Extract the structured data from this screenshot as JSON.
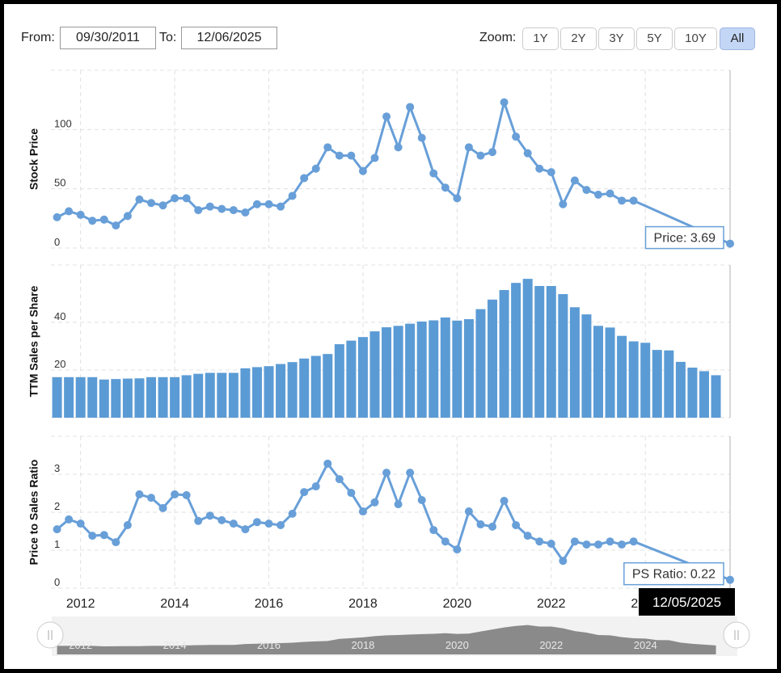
{
  "controls": {
    "from_label": "From:",
    "from_value": "09/30/2011",
    "to_label": "To:",
    "to_value": "12/06/2025",
    "zoom_label": "Zoom:",
    "zoom_buttons": [
      "1Y",
      "2Y",
      "3Y",
      "5Y",
      "10Y",
      "All"
    ],
    "zoom_selected": "All"
  },
  "chart_data": [
    {
      "type": "line",
      "y_label": "Stock Price",
      "color": "#689fd8",
      "x": [
        2011.5,
        2011.75,
        2012,
        2012.25,
        2012.5,
        2012.75,
        2013,
        2013.25,
        2013.5,
        2013.75,
        2014,
        2014.25,
        2014.5,
        2014.75,
        2015,
        2015.25,
        2015.5,
        2015.75,
        2016,
        2016.25,
        2016.5,
        2016.75,
        2017,
        2017.25,
        2017.5,
        2017.75,
        2018,
        2018.25,
        2018.5,
        2018.75,
        2019,
        2019.25,
        2019.5,
        2019.75,
        2020,
        2020.25,
        2020.5,
        2020.75,
        2021,
        2021.25,
        2021.5,
        2021.75,
        2022,
        2022.25,
        2022.5,
        2022.75,
        2023,
        2023.25,
        2023.5,
        2023.75,
        2025.8
      ],
      "values": [
        26,
        31,
        28,
        23,
        24,
        19,
        27,
        41,
        38,
        36,
        42,
        42,
        32,
        35,
        33,
        32,
        30,
        37,
        37,
        35,
        44,
        59,
        67,
        85,
        78,
        78,
        65,
        76,
        111,
        85,
        119,
        93,
        63,
        51,
        42,
        85,
        78,
        81,
        123,
        94,
        80,
        67,
        64,
        37,
        57,
        49,
        45,
        46,
        40,
        40,
        3.69
      ],
      "xlim": [
        2011.37,
        2025.8
      ],
      "xticks": [
        2012,
        2014,
        2016,
        2018,
        2020,
        2022,
        2024
      ],
      "ylim": [
        0,
        150
      ],
      "yticks": [
        0,
        50,
        100
      ],
      "grid": true,
      "tooltip": "Price: 3.69"
    },
    {
      "type": "bar",
      "y_label": "TTM Sales per Share",
      "color": "#5b9bd5",
      "x": [
        2011.5,
        2011.75,
        2012,
        2012.25,
        2012.5,
        2012.75,
        2013,
        2013.25,
        2013.5,
        2013.75,
        2014,
        2014.25,
        2014.5,
        2014.75,
        2015,
        2015.25,
        2015.5,
        2015.75,
        2016,
        2016.25,
        2016.5,
        2016.75,
        2017,
        2017.25,
        2017.5,
        2017.75,
        2018,
        2018.25,
        2018.5,
        2018.75,
        2019,
        2019.25,
        2019.5,
        2019.75,
        2020,
        2020.25,
        2020.5,
        2020.75,
        2021,
        2021.25,
        2021.5,
        2021.75,
        2022,
        2022.25,
        2022.5,
        2022.75,
        2023,
        2023.25,
        2023.5,
        2023.75,
        2024,
        2024.25,
        2024.5,
        2024.75,
        2025,
        2025.25,
        2025.5
      ],
      "values": [
        17.0,
        17.0,
        17.0,
        17.0,
        16.0,
        16.2,
        16.4,
        16.5,
        17.0,
        17.0,
        17.0,
        17.8,
        18.4,
        18.8,
        18.8,
        18.8,
        20.7,
        21.2,
        21.6,
        22.5,
        23.3,
        24.8,
        25.9,
        26.7,
        30.8,
        32.3,
        33.8,
        36.2,
        37.9,
        38.5,
        39.4,
        40.3,
        40.8,
        42.0,
        40.7,
        41.3,
        45.5,
        49.5,
        53.5,
        56.5,
        58.2,
        55.2,
        55.2,
        51.8,
        46.3,
        43.3,
        38.5,
        37.8,
        34.3,
        32.0,
        31.4,
        28.4,
        28.2,
        23.4,
        21.0,
        19.5,
        17.8
      ],
      "xlim": [
        2011.37,
        2025.8
      ],
      "xticks": [
        2012,
        2014,
        2016,
        2018,
        2020,
        2022,
        2024
      ],
      "ylim": [
        0,
        64
      ],
      "yticks": [
        0,
        20,
        40
      ],
      "grid": true
    },
    {
      "type": "line",
      "y_label": "Price to Sales Ratio",
      "color": "#689fd8",
      "x": [
        2011.5,
        2011.75,
        2012,
        2012.25,
        2012.5,
        2012.75,
        2013,
        2013.25,
        2013.5,
        2013.75,
        2014,
        2014.25,
        2014.5,
        2014.75,
        2015,
        2015.25,
        2015.5,
        2015.75,
        2016,
        2016.25,
        2016.5,
        2016.75,
        2017,
        2017.25,
        2017.5,
        2017.75,
        2018,
        2018.25,
        2018.5,
        2018.75,
        2019,
        2019.25,
        2019.5,
        2019.75,
        2020,
        2020.25,
        2020.5,
        2020.75,
        2021,
        2021.25,
        2021.5,
        2021.75,
        2022,
        2022.25,
        2022.5,
        2022.75,
        2023,
        2023.25,
        2023.5,
        2023.75,
        2025.8
      ],
      "values": [
        1.55,
        1.81,
        1.7,
        1.38,
        1.4,
        1.21,
        1.66,
        2.47,
        2.38,
        2.11,
        2.47,
        2.45,
        1.77,
        1.91,
        1.79,
        1.7,
        1.55,
        1.74,
        1.7,
        1.66,
        1.96,
        2.53,
        2.68,
        3.28,
        2.87,
        2.51,
        2.02,
        2.26,
        3.04,
        2.21,
        3.04,
        2.32,
        1.53,
        1.23,
        1.02,
        2.02,
        1.68,
        1.62,
        2.3,
        1.66,
        1.38,
        1.23,
        1.17,
        0.72,
        1.23,
        1.15,
        1.15,
        1.23,
        1.15,
        1.23,
        0.22
      ],
      "xlim": [
        2011.37,
        2025.8
      ],
      "xticks": [
        2012,
        2014,
        2016,
        2018,
        2020,
        2022,
        2024
      ],
      "ylim": [
        0,
        4
      ],
      "yticks": [
        0,
        1,
        2,
        3
      ],
      "grid": true,
      "tooltip": "PS Ratio: 0.22",
      "crosshair_label": "12/05/2025"
    }
  ]
}
